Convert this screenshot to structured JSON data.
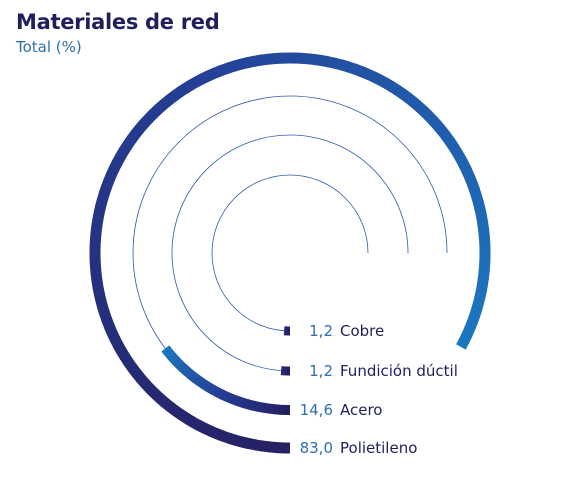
{
  "chart_data": {
    "type": "radial_bar",
    "title": "Materiales de red",
    "subtitle": "Total (%)",
    "max": 100,
    "series": [
      {
        "name": "Cobre",
        "label": "1,2",
        "value": 1.2
      },
      {
        "name": "Fundición dúctil",
        "label": "1,2",
        "value": 1.2
      },
      {
        "name": "Acero",
        "label": "14,6",
        "value": 14.6
      },
      {
        "name": "Polietileno",
        "label": "83,0",
        "value": 83.0
      }
    ],
    "colors": {
      "arc_start": "#262063",
      "arc_mid": "#243f95",
      "arc_end": "#1c78c0",
      "track": "#2e5aa8",
      "value_text": "#2e6fb0",
      "label_text": "#1f1f5e"
    }
  }
}
